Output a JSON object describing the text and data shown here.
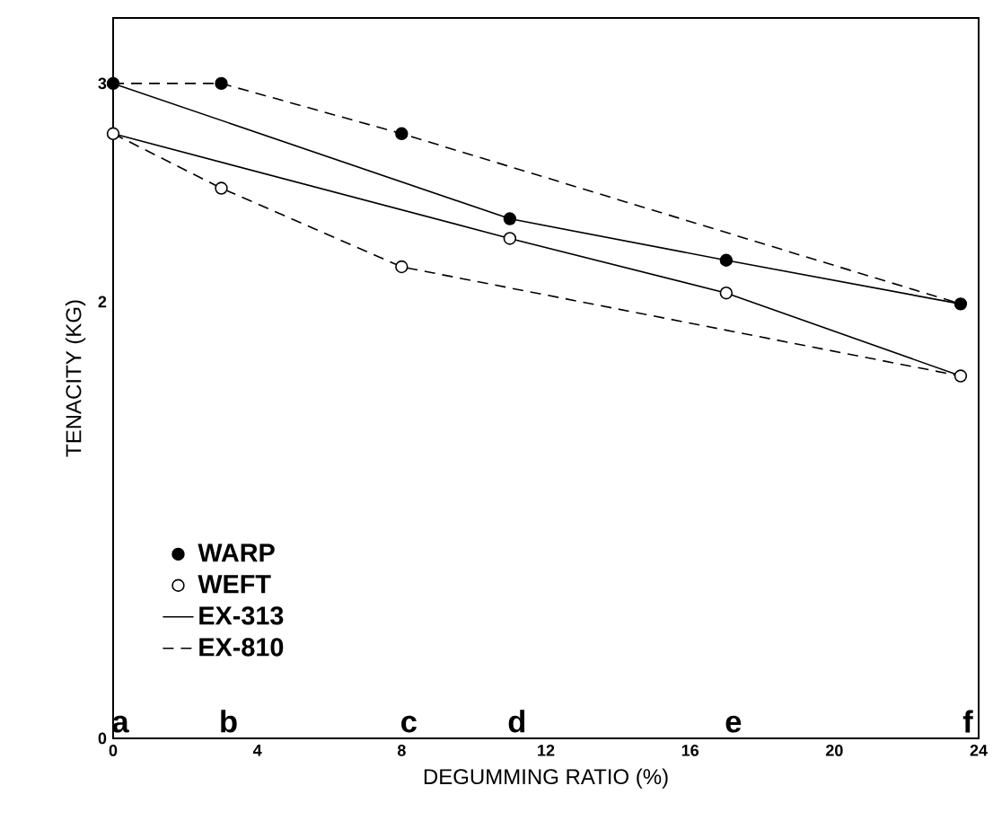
{
  "chart_data": {
    "type": "line",
    "xlabel": "DEGUMMING RATIO (%)",
    "ylabel": "TENACITY (KG)",
    "xlim": [
      0,
      24
    ],
    "xticks": [
      0,
      4,
      8,
      12,
      16,
      20,
      24
    ],
    "ylim": [
      0,
      3.3
    ],
    "yticks": [
      0,
      2,
      3
    ],
    "legend": "bottom left",
    "grid": false,
    "series": [
      {
        "name": "WARP",
        "type": "scatter",
        "marker": "circle",
        "color": "#000000",
        "x": [
          0,
          3,
          8,
          11,
          17,
          23.5
        ],
        "values": [
          3.0,
          3.0,
          2.77,
          2.38,
          2.19,
          1.99
        ]
      },
      {
        "name": "WEFT",
        "type": "scatter",
        "marker": "circle",
        "color": "#ffffff",
        "x": [
          0,
          3,
          8,
          11,
          17,
          23.5
        ],
        "values": [
          2.77,
          2.52,
          2.16,
          2.29,
          2.04,
          1.66
        ]
      },
      {
        "name": "EX-**313**",
        "line_style": "solid",
        "color": "#000000",
        "x": [
          0,
          11,
          17,
          23.5
        ],
        "values": [
          3.0,
          2.38,
          2.19,
          1.99
        ]
      },
      {
        "name": "EX-**810**",
        "line_style": "dashed",
        "color": "#000000",
        "x": [
          0,
          3,
          8,
          23.5
        ],
        "values": [
          3.0,
          3.0,
          2.77,
          1.99
        ]
      },
      {
        "line_style": "solid",
        "color": "#000000",
        "x": [
          0,
          11,
          17,
          23.5
        ],
        "values": [
          2.77,
          2.29,
          2.04,
          1.66
        ]
      },
      {
        "line_style": "dashed",
        "color": "#000000",
        "x": [
          0,
          3,
          8,
          23.5
        ],
        "values": [
          2.77,
          2.52,
          2.16,
          1.66
        ]
      }
    ],
    "annotations": [
      "a",
      "b",
      "c",
      "d",
      "e",
      "f"
    ]
  }
}
